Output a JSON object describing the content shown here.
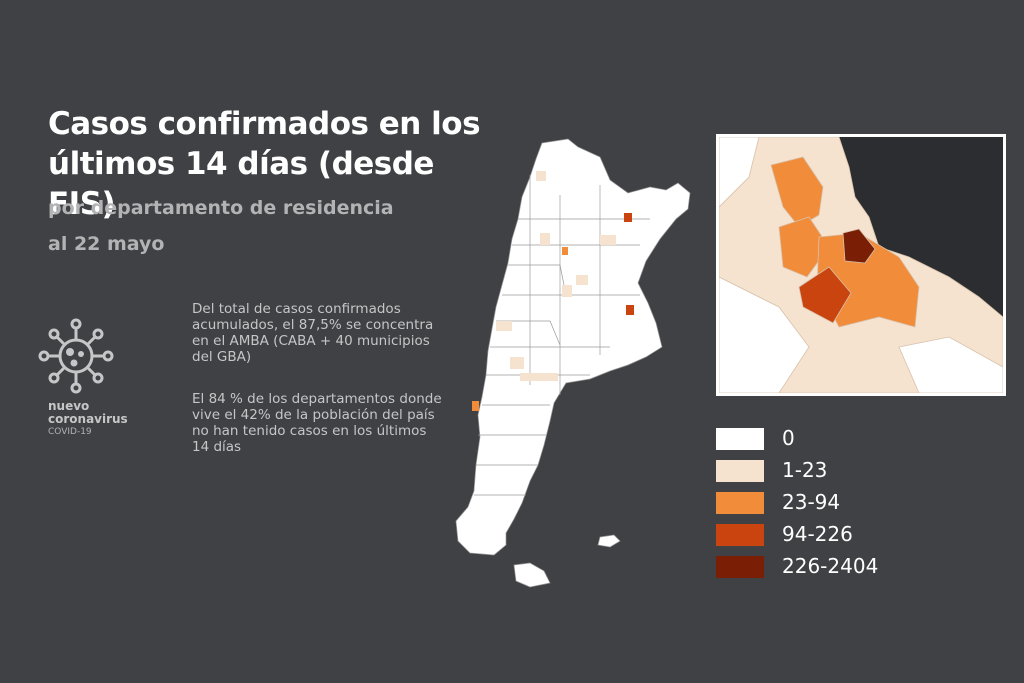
{
  "title": "Casos confirmados en los últimos 14 días (desde FIS)",
  "subtitle": "por departamento de residencia",
  "date": "al 22 mayo",
  "paragraph1": "Del total de casos confirmados acumulados, el 87,5% se concentra en el AMBA (CABA + 40 municipios del GBA)",
  "paragraph2": "El 84 % de los departamentos donde vive el 42% de la población del país no han tenido casos en los últimos 14 días",
  "brand": {
    "line1": "nuevo",
    "line2": "coronavirus",
    "line3": "COVID-19",
    "icon": "virus-icon"
  },
  "legend": [
    {
      "label": "0",
      "color": "#ffffff"
    },
    {
      "label": "1-23",
      "color": "#f5e2cf"
    },
    {
      "label": "23-94",
      "color": "#f08c3a"
    },
    {
      "label": "94-226",
      "color": "#c9440f"
    },
    {
      "label": "226-2404",
      "color": "#7a1e06"
    }
  ],
  "colors": {
    "background": "#404144",
    "title": "#ffffff",
    "secondary_text": "#b3b3b5",
    "body_text": "#c6c6c8",
    "inset_water": "#2b2d31",
    "land_base": "#ffffff",
    "land_light": "#f5e2cf",
    "land_mid": "#f08c3a",
    "land_dark": "#c9440f",
    "land_darkest": "#7a1e06"
  }
}
